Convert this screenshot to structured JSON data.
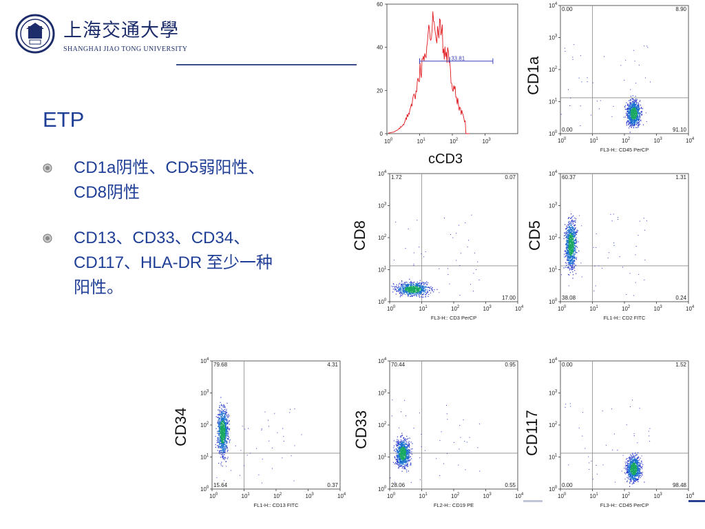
{
  "logo": {
    "name_cn": "上海交通大學",
    "name_en": "SHANGHAI JIAO TONG UNIVERSITY",
    "seal_text": "1896"
  },
  "slide": {
    "title": "ETP"
  },
  "bullets": [
    {
      "text": "CD1a阴性、CD5弱阳性、CD8阴性"
    },
    {
      "text": "CD13、CD33、CD34、CD117、HLA-DR 至少一种阳性。"
    }
  ],
  "colors": {
    "title": "#1f3f96",
    "histogram": "#e0161b",
    "marker": "#3a3fb5",
    "quad_line": "#888888",
    "accent_bar": "#2b3f8f"
  },
  "histogram": {
    "yticks": [
      "0",
      "20",
      "40",
      "60"
    ],
    "marker_value": "33.81",
    "xlabel": "cCD3"
  },
  "plots": [
    {
      "id": "cd1a",
      "ylabel": "CD1a",
      "xaxis": "FL3-H:: CD45 PerCP",
      "ul": "0.00",
      "ur": "8.90",
      "ll": "0.00",
      "lr": "91.10",
      "cluster": "tight-right"
    },
    {
      "id": "cd8",
      "ylabel": "CD8",
      "xaxis": "FL3-H:: CD3 PerCP",
      "ul": "1.72",
      "ur": "0.07",
      "ll": "",
      "lr": "17.00",
      "cluster": "low-left"
    },
    {
      "id": "cd5",
      "ylabel": "CD5",
      "xaxis": "FL1-H:: CD2 FITC",
      "ul": "60.37",
      "ur": "1.31",
      "ll": "38.08",
      "lr": "0.24",
      "cluster": "tall-left"
    },
    {
      "id": "cd34",
      "ylabel": "CD34",
      "xaxis": "FL1-H:: CD13 FITC",
      "ul": "79.68",
      "ur": "4.31",
      "ll": "15.64",
      "lr": "0.37",
      "cluster": "tall-left"
    },
    {
      "id": "cd33",
      "ylabel": "CD33",
      "xaxis": "FL2-H:: CD19 PE",
      "ul": "70.44",
      "ur": "0.95",
      "ll": "28.06",
      "lr": "0.55",
      "cluster": "mid-left"
    },
    {
      "id": "cd117",
      "ylabel": "CD117",
      "xaxis": "FL3-H:: CD45 PerCP",
      "ul": "0.00",
      "ur": "1.52",
      "ll": "0.00",
      "lr": "98.48",
      "cluster": "tight-right"
    }
  ],
  "axis_ticks": {
    "x": [
      "10",
      "10",
      "10",
      "10",
      "10"
    ],
    "x_exp": [
      "0",
      "1",
      "2",
      "3",
      "4"
    ],
    "y": [
      "10",
      "10",
      "10",
      "10",
      "10"
    ],
    "y_exp": [
      "0",
      "1",
      "2",
      "3",
      "4"
    ]
  }
}
